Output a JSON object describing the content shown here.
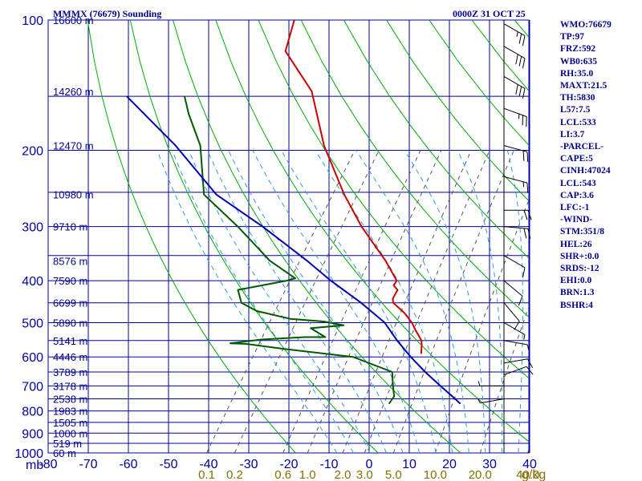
{
  "header": {
    "station": "MMMX (76679) Sounding",
    "datetime": "0000Z 31 OCT 25"
  },
  "axes": {
    "pressure_unit": "mb",
    "pressure_ticks": [
      100,
      200,
      300,
      400,
      500,
      600,
      700,
      800,
      900,
      1000
    ],
    "temp_ticks": [
      -80,
      -70,
      -60,
      -50,
      -40,
      -30,
      -20,
      -10,
      0,
      10,
      20,
      30,
      40
    ],
    "mixing_ratio_ticks": [
      "0.1",
      "0.2",
      "0.6",
      "1.0",
      "2.0",
      "3.0",
      "5.0",
      "10.0",
      "20.0",
      "40.0"
    ],
    "mixing_ratio_unit": "g/kg",
    "height_labels": [
      {
        "p": 100,
        "text": "16600 m"
      },
      {
        "p": 146,
        "text": "14260 m"
      },
      {
        "p": 195,
        "text": "12470 m"
      },
      {
        "p": 253,
        "text": "10980 m"
      },
      {
        "p": 300,
        "text": "9710 m"
      },
      {
        "p": 360,
        "text": "8576 m"
      },
      {
        "p": 400,
        "text": "7590 m"
      },
      {
        "p": 450,
        "text": "6699 m"
      },
      {
        "p": 500,
        "text": "5890 m"
      },
      {
        "p": 550,
        "text": "5141 m"
      },
      {
        "p": 600,
        "text": "4446 m"
      },
      {
        "p": 650,
        "text": "3789 m"
      },
      {
        "p": 700,
        "text": "3178 m"
      },
      {
        "p": 750,
        "text": "2538 m"
      },
      {
        "p": 800,
        "text": "1983 m"
      },
      {
        "p": 850,
        "text": "1505 m"
      },
      {
        "p": 900,
        "text": "1000 m"
      },
      {
        "p": 950,
        "text": "519 m"
      },
      {
        "p": 1000,
        "text": "60 m"
      }
    ]
  },
  "indices": [
    "WMO:76679",
    "TP:97",
    "FRZ:592",
    "WB0:635",
    "RH:35.0",
    "MAXT:21.5",
    "TH:5830",
    "L57:7.5",
    "LCL:533",
    "LI:3.7",
    "-PARCEL-",
    "CAPE:5",
    "CINH:47024",
    "LCL:543",
    "CAP:3.6",
    "LFC:-1",
    "-WIND-",
    "STM:351/8",
    "HEL:26",
    "SHR+:0.0",
    "SRDS:-12",
    "EHI:0.0",
    "BRN:1.3",
    "BSHR:4"
  ],
  "colors": {
    "temperature": "#cc0000",
    "dewpoint": "#005a00",
    "parcel": "#0000b0",
    "grid": "#0000a0",
    "dry_adiabat": "#00aa00",
    "moist_adiabat": "#3399dd",
    "mixing_ratio": "#555555",
    "index_text": "#00008b",
    "mixing_label": "#807000"
  },
  "chart_data": {
    "type": "line",
    "title": "MMMX (76679) Sounding",
    "subtitle": "0000Z 31 OCT 25",
    "xlabel": "",
    "ylabel": "mb",
    "xlim": [
      -80,
      40
    ],
    "ylim": [
      1000,
      100
    ],
    "y_scale": "log",
    "grid": true,
    "series": [
      {
        "key": "temperature",
        "points": [
          [
            100,
            -92
          ],
          [
            118,
            -89
          ],
          [
            146,
            -76
          ],
          [
            195,
            -64
          ],
          [
            253,
            -51
          ],
          [
            300,
            -41.5
          ],
          [
            360,
            -30
          ],
          [
            400,
            -24
          ],
          [
            410,
            -24
          ],
          [
            420,
            -22.3
          ],
          [
            440,
            -22
          ],
          [
            450,
            -21.2
          ],
          [
            475,
            -16.8
          ],
          [
            500,
            -13.4
          ],
          [
            520,
            -11.3
          ],
          [
            550,
            -8.1
          ],
          [
            565,
            -7.2
          ],
          [
            590,
            -6.0
          ]
        ]
      },
      {
        "key": "dewpoint",
        "points": [
          [
            150,
            -106
          ],
          [
            165,
            -102
          ],
          [
            195,
            -94
          ],
          [
            253,
            -85
          ],
          [
            300,
            -71.5
          ],
          [
            360,
            -58
          ],
          [
            395,
            -49
          ],
          [
            400,
            -50.7
          ],
          [
            420,
            -61
          ],
          [
            450,
            -58
          ],
          [
            470,
            -53
          ],
          [
            490,
            -43.5
          ],
          [
            497,
            -35
          ],
          [
            507,
            -29.5
          ],
          [
            515,
            -37
          ],
          [
            540,
            -32
          ],
          [
            540,
            -37
          ],
          [
            547,
            -47
          ],
          [
            558,
            -54
          ],
          [
            560,
            -50
          ],
          [
            575,
            -40
          ],
          [
            600,
            -22
          ],
          [
            650,
            -10
          ],
          [
            700,
            -7.5
          ],
          [
            740,
            -5.5
          ],
          [
            750,
            -5.5
          ],
          [
            770,
            -5.5
          ]
        ]
      },
      {
        "key": "parcel",
        "points": [
          [
            150,
            -120
          ],
          [
            195,
            -100
          ],
          [
            253,
            -82
          ],
          [
            300,
            -65.5
          ],
          [
            360,
            -49
          ],
          [
            400,
            -40
          ],
          [
            450,
            -29
          ],
          [
            500,
            -20
          ],
          [
            550,
            -14
          ],
          [
            600,
            -8
          ],
          [
            650,
            -2
          ],
          [
            700,
            4
          ],
          [
            750,
            9.7
          ],
          [
            770,
            11.8
          ]
        ]
      }
    ],
    "wind_barbs": [
      {
        "p": 102,
        "dir": 300,
        "spd": 25
      },
      {
        "p": 115,
        "dir": 300,
        "spd": 30
      },
      {
        "p": 135,
        "dir": 300,
        "spd": 30
      },
      {
        "p": 160,
        "dir": 290,
        "spd": 25
      },
      {
        "p": 195,
        "dir": 285,
        "spd": 20
      },
      {
        "p": 230,
        "dir": 285,
        "spd": 15
      },
      {
        "p": 275,
        "dir": 270,
        "spd": 20
      },
      {
        "p": 300,
        "dir": 275,
        "spd": 20
      },
      {
        "p": 350,
        "dir": 300,
        "spd": 10
      },
      {
        "p": 400,
        "dir": 310,
        "spd": 10
      },
      {
        "p": 450,
        "dir": 320,
        "spd": 10
      },
      {
        "p": 500,
        "dir": 300,
        "spd": 5
      },
      {
        "p": 550,
        "dir": 280,
        "spd": 5
      },
      {
        "p": 620,
        "dir": 260,
        "spd": 10
      },
      {
        "p": 660,
        "dir": 250,
        "spd": 10
      },
      {
        "p": 700,
        "dir": 90,
        "spd": 5
      },
      {
        "p": 750,
        "dir": 80,
        "spd": 5
      }
    ]
  }
}
